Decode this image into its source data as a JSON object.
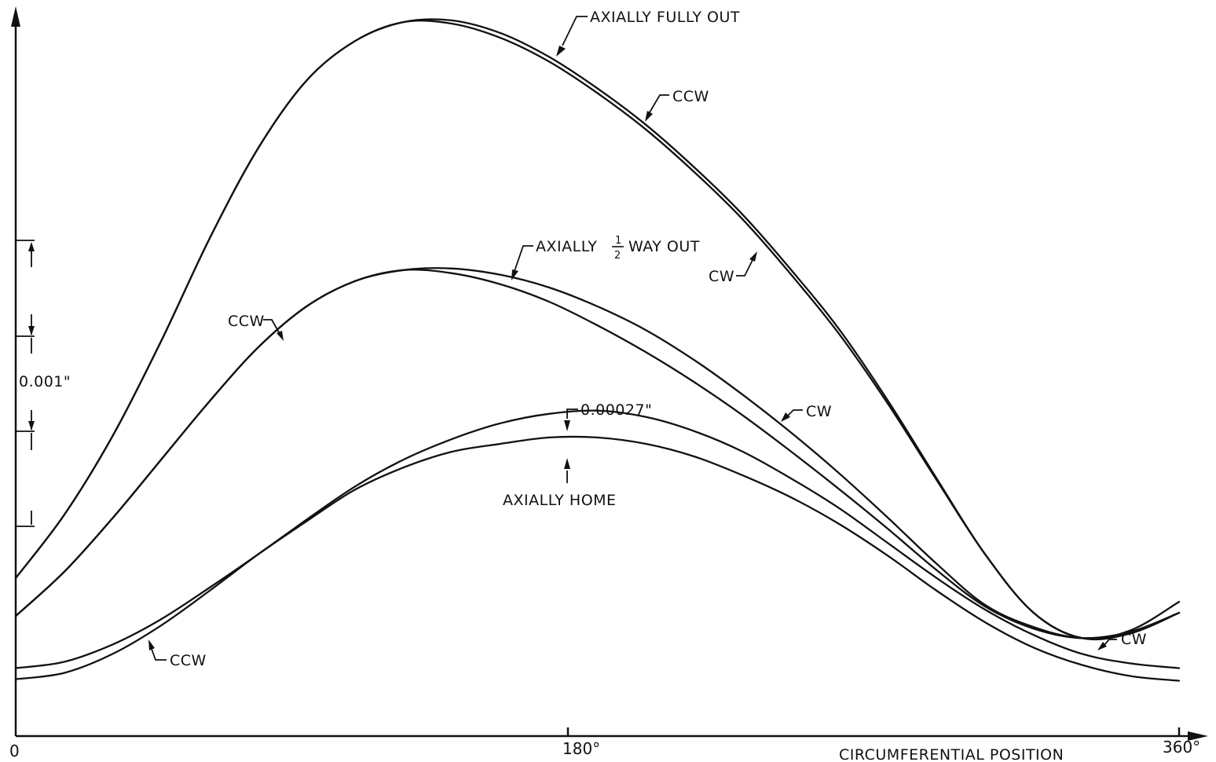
{
  "chart_data": {
    "type": "line",
    "title": "",
    "xlabel": "CIRCUMFERENTIAL POSITION",
    "ylabel": "",
    "xlim": [
      0,
      360
    ],
    "ylim": [
      0,
      4.57
    ],
    "x_ticks": [
      "0",
      "180°",
      "360°"
    ],
    "y_scale_label": "0.001\"",
    "grid": false,
    "x": [
      0,
      15,
      30,
      45,
      60,
      75,
      90,
      105,
      120,
      135,
      150,
      165,
      180,
      195,
      210,
      225,
      240,
      255,
      270,
      285,
      300,
      315,
      330,
      345,
      360
    ],
    "series": [
      {
        "name": "AXIALLY FULLY OUT CCW",
        "group": "AXIALLY FULLY OUT",
        "values": [
          1.0,
          1.4,
          1.9,
          2.5,
          3.15,
          3.72,
          4.15,
          4.4,
          4.52,
          4.53,
          4.45,
          4.3,
          4.1,
          3.87,
          3.6,
          3.3,
          2.95,
          2.57,
          2.12,
          1.63,
          1.15,
          0.78,
          0.62,
          0.67,
          0.85
        ]
      },
      {
        "name": "AXIALLY FULLY OUT CW",
        "group": "AXIALLY FULLY OUT",
        "values": [
          1.0,
          1.4,
          1.9,
          2.5,
          3.15,
          3.72,
          4.15,
          4.4,
          4.52,
          4.51,
          4.42,
          4.27,
          4.07,
          3.84,
          3.57,
          3.27,
          2.92,
          2.54,
          2.1,
          1.62,
          1.15,
          0.78,
          0.62,
          0.65,
          0.78
        ]
      },
      {
        "name": "AXIALLY 1/2 WAY OUT CCW",
        "group": "AXIALLY 1/2 WAY OUT",
        "values": [
          0.76,
          1.04,
          1.38,
          1.75,
          2.12,
          2.46,
          2.72,
          2.88,
          2.95,
          2.96,
          2.92,
          2.84,
          2.72,
          2.57,
          2.38,
          2.16,
          1.92,
          1.66,
          1.38,
          1.09,
          0.83,
          0.69,
          0.62,
          0.66,
          0.78
        ]
      },
      {
        "name": "AXIALLY 1/2 WAY OUT CW",
        "group": "AXIALLY 1/2 WAY OUT",
        "values": [
          0.76,
          1.04,
          1.38,
          1.75,
          2.12,
          2.46,
          2.72,
          2.88,
          2.95,
          2.93,
          2.86,
          2.75,
          2.6,
          2.43,
          2.24,
          2.03,
          1.8,
          1.56,
          1.31,
          1.05,
          0.82,
          0.68,
          0.62,
          0.66,
          0.78
        ]
      },
      {
        "name": "AXIALLY HOME CCW",
        "group": "AXIALLY HOME",
        "values": [
          0.43,
          0.47,
          0.58,
          0.74,
          0.94,
          1.15,
          1.37,
          1.58,
          1.75,
          1.88,
          1.98,
          2.04,
          2.06,
          2.02,
          1.93,
          1.8,
          1.63,
          1.44,
          1.22,
          1.0,
          0.8,
          0.64,
          0.52,
          0.46,
          0.43
        ]
      },
      {
        "name": "AXIALLY HOME CW",
        "group": "AXIALLY HOME",
        "values": [
          0.36,
          0.4,
          0.52,
          0.7,
          0.92,
          1.15,
          1.36,
          1.56,
          1.7,
          1.8,
          1.85,
          1.89,
          1.89,
          1.85,
          1.77,
          1.65,
          1.51,
          1.34,
          1.14,
          0.92,
          0.72,
          0.56,
          0.45,
          0.38,
          0.35
        ]
      }
    ],
    "annotations": [
      {
        "text": "AXIALLY FULLY OUT",
        "x": 173,
        "y": 4.2
      },
      {
        "text": "CCW",
        "x": 203,
        "y": 3.55
      },
      {
        "text": "CW",
        "x": 240,
        "y": 2.75
      },
      {
        "text": "CCW",
        "x": 87,
        "y": 2.45
      },
      {
        "text": "CW",
        "x": 248,
        "y": 1.85
      },
      {
        "text": "0.00027\"",
        "x": 180,
        "y": 2.06
      },
      {
        "text": "AXIALLY HOME",
        "x": 180,
        "y": 1.89
      },
      {
        "text": "CCW",
        "x": 43,
        "y": 0.55
      },
      {
        "text": "CW",
        "x": 345,
        "y": 0.55
      }
    ],
    "half_label": {
      "prefix": "AXIALLY",
      "numerator": "1",
      "denominator": "2",
      "suffix": "WAY OUT",
      "x": 160,
      "y": 2.98
    }
  }
}
